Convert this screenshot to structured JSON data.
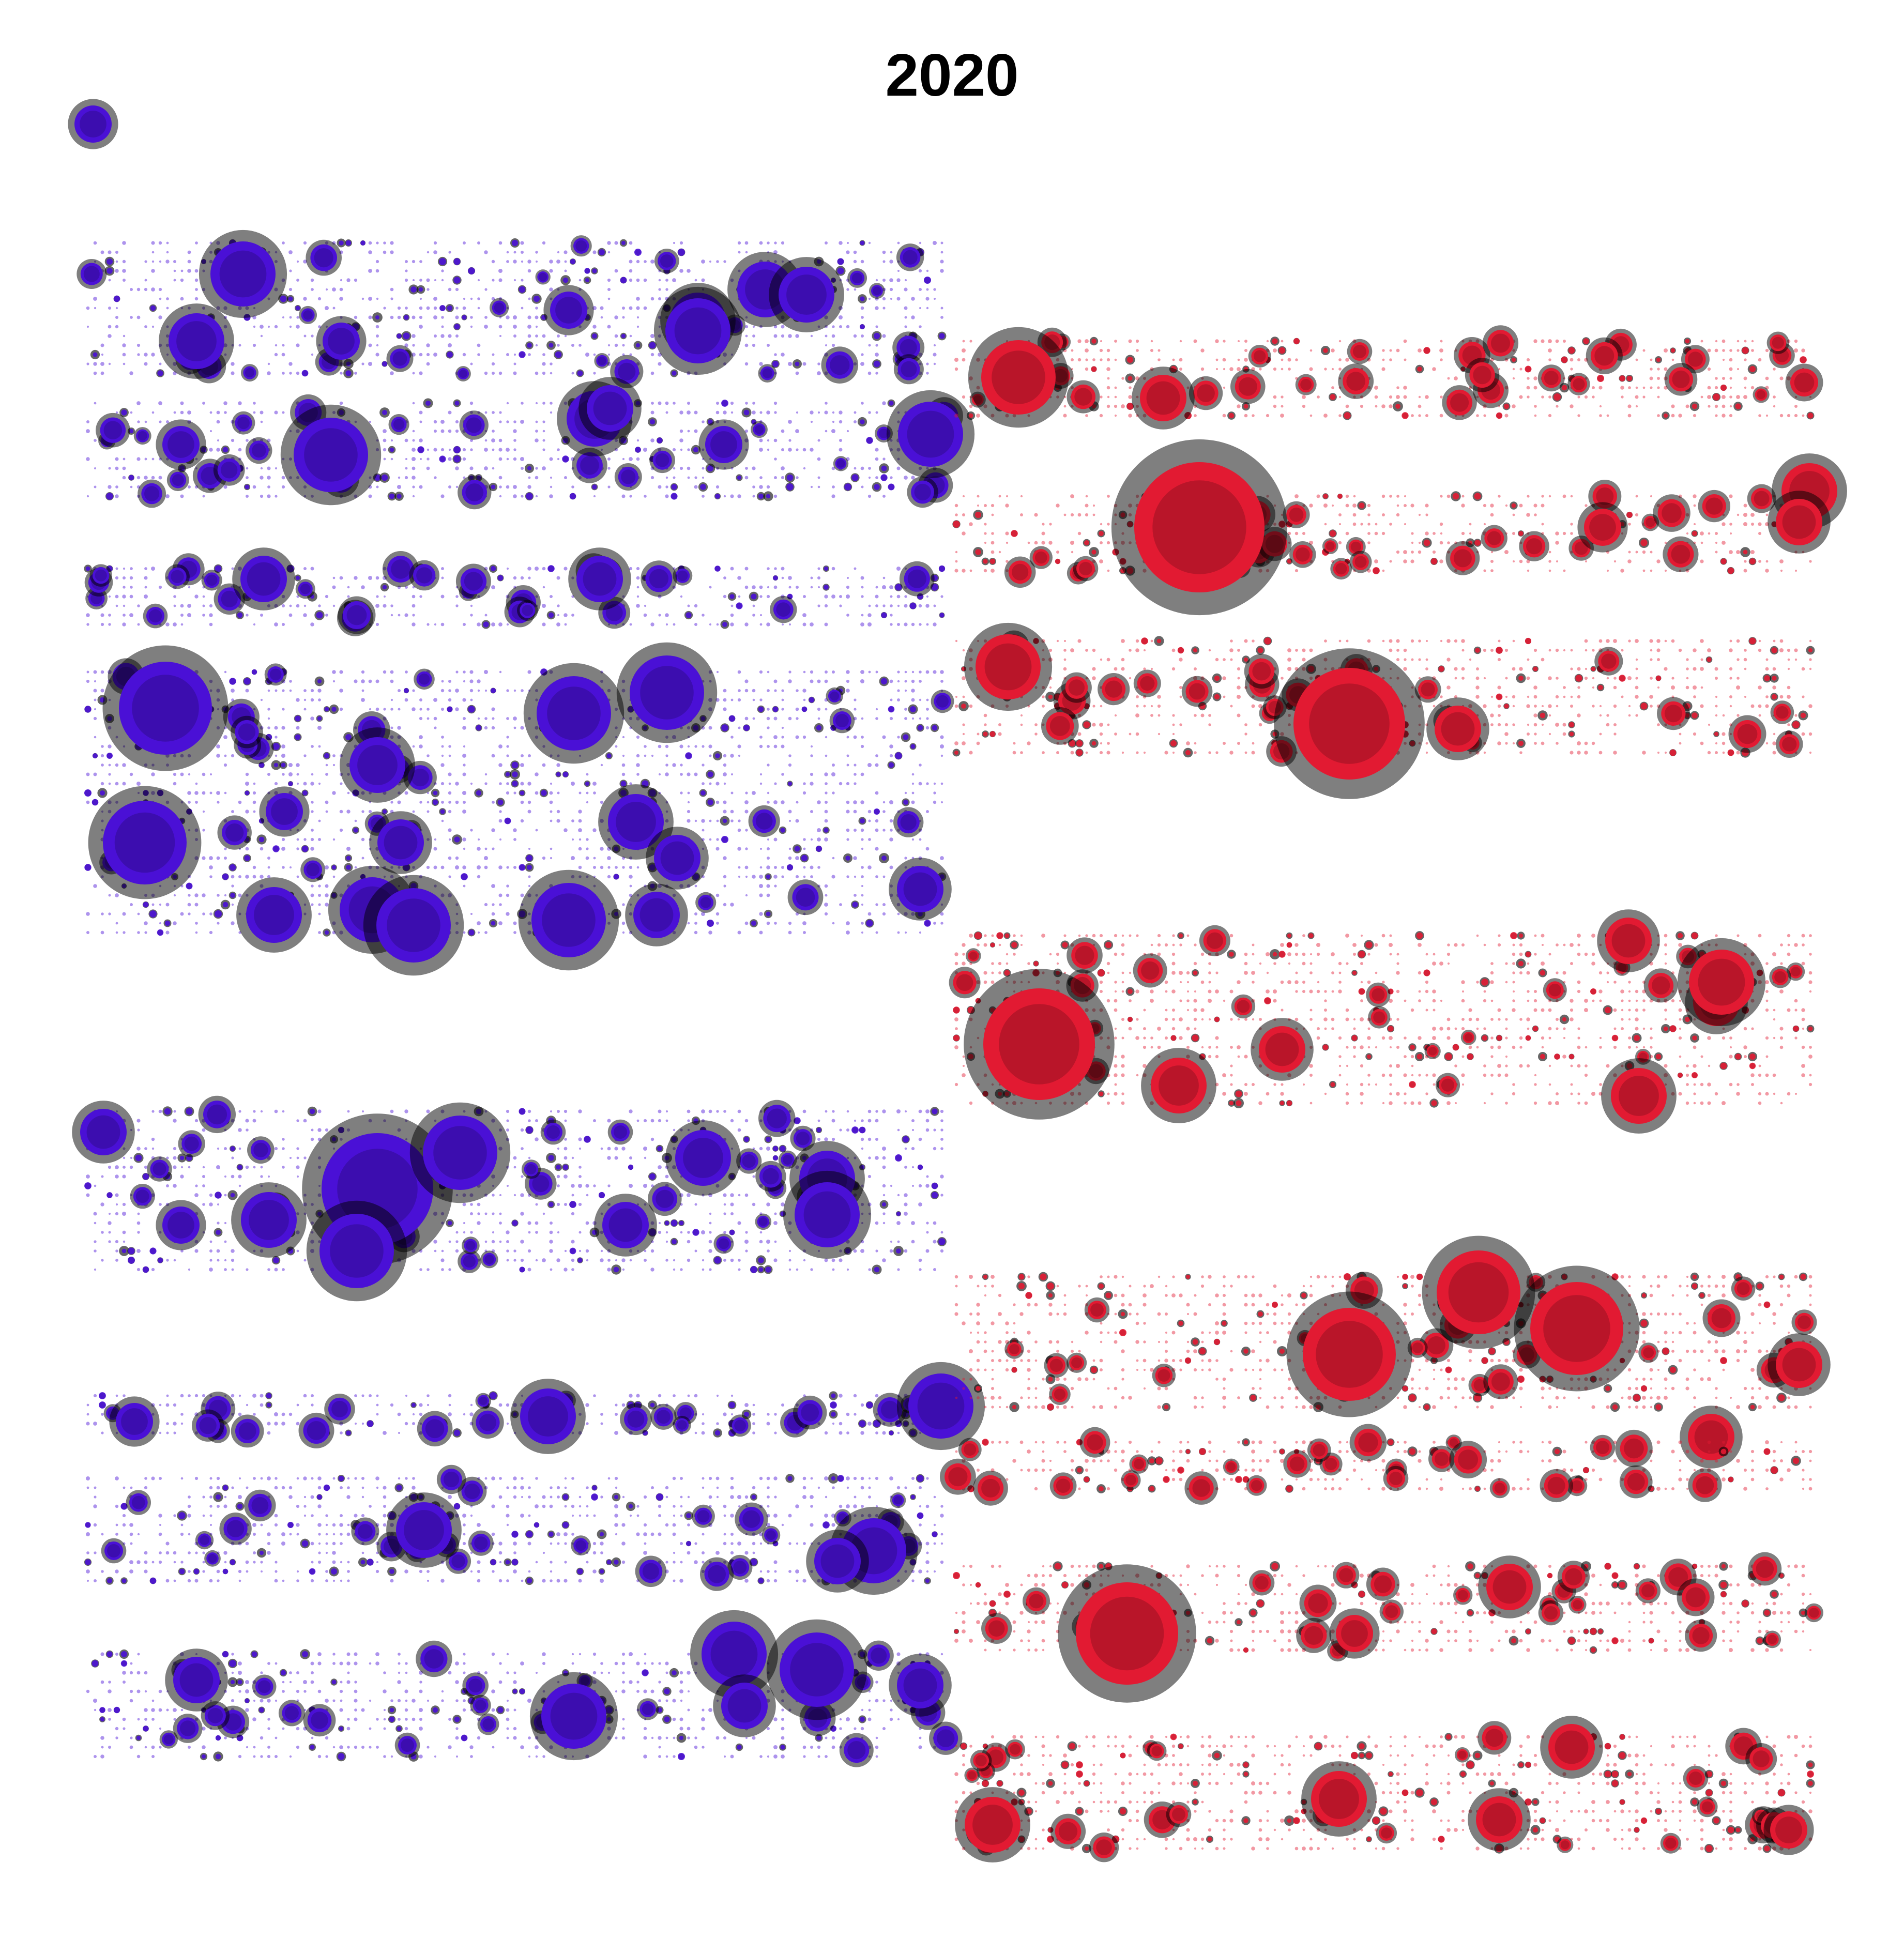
{
  "chart_data": {
    "type": "scatter",
    "title": "2020",
    "xlabel": "",
    "ylabel": "",
    "grid": false,
    "legend": "none",
    "colors": {
      "left": "#4a10d6",
      "right": "#e21a32",
      "halo": "#000000"
    },
    "bands": [
      {
        "side": "left",
        "y": [
          470,
          730
        ],
        "bubbles": [
          [
            180,
            240,
            2
          ],
          [
            470,
            530,
            3.5
          ],
          [
            660,
            660,
            2
          ],
          [
            1350,
            620,
            3
          ],
          [
            1480,
            560,
            3
          ],
          [
            1560,
            570,
            3
          ],
          [
            1350,
            640,
            3.5
          ],
          [
            380,
            660,
            3
          ],
          [
            1100,
            600,
            2
          ]
        ]
      },
      {
        "side": "left",
        "y": [
          780,
          960
        ],
        "bubbles": [
          [
            640,
            880,
            4
          ],
          [
            1150,
            810,
            3
          ],
          [
            1180,
            790,
            2.5
          ],
          [
            1800,
            840,
            3.5
          ],
          [
            350,
            860,
            2
          ],
          [
            1400,
            860,
            2
          ]
        ]
      },
      {
        "side": "left",
        "y": [
          1100,
          1210
        ],
        "bubbles": [
          [
            510,
            1120,
            2.5
          ],
          [
            1160,
            1120,
            2.5
          ],
          [
            690,
            1190,
            1.5
          ]
        ]
      },
      {
        "side": "left",
        "y": [
          1300,
          1800
        ],
        "bubbles": [
          [
            320,
            1370,
            5
          ],
          [
            1290,
            1340,
            4
          ],
          [
            1110,
            1380,
            4
          ],
          [
            730,
            1480,
            3
          ],
          [
            280,
            1630,
            4.5
          ],
          [
            1230,
            1590,
            3
          ],
          [
            550,
            1570,
            2
          ],
          [
            775,
            1630,
            2.5
          ],
          [
            1310,
            1660,
            2.5
          ],
          [
            530,
            1770,
            3
          ],
          [
            720,
            1760,
            3.5
          ],
          [
            800,
            1790,
            4
          ],
          [
            1100,
            1780,
            4
          ],
          [
            1270,
            1770,
            2.5
          ],
          [
            1780,
            1720,
            2.5
          ]
        ]
      },
      {
        "side": "left",
        "y": [
          2150,
          2460
        ],
        "bubbles": [
          [
            730,
            2300,
            6
          ],
          [
            690,
            2420,
            4
          ],
          [
            890,
            2230,
            4
          ],
          [
            520,
            2360,
            3
          ],
          [
            1600,
            2280,
            3
          ],
          [
            1600,
            2350,
            3.5
          ],
          [
            1360,
            2240,
            3
          ],
          [
            1210,
            2370,
            2.5
          ],
          [
            1070,
            2190,
            1
          ],
          [
            1200,
            2190,
            1
          ],
          [
            200,
            2190,
            2.5
          ],
          [
            350,
            2370,
            2
          ]
        ]
      },
      {
        "side": "left",
        "y": [
          2700,
          2770
        ],
        "bubbles": [
          [
            1060,
            2740,
            3
          ],
          [
            1820,
            2720,
            3.5
          ],
          [
            260,
            2750,
            2
          ]
        ]
      },
      {
        "side": "left",
        "y": [
          2860,
          3060
        ],
        "bubbles": [
          [
            820,
            2960,
            3
          ],
          [
            1690,
            3000,
            3.5
          ],
          [
            1620,
            3020,
            2.5
          ],
          [
            220,
            3000,
            1
          ]
        ]
      },
      {
        "side": "left",
        "y": [
          3200,
          3390
        ],
        "bubbles": [
          [
            1580,
            3230,
            4
          ],
          [
            1420,
            3200,
            3.5
          ],
          [
            1110,
            3320,
            3.5
          ],
          [
            380,
            3250,
            2.5
          ],
          [
            1780,
            3260,
            2.5
          ],
          [
            1440,
            3300,
            2.5
          ]
        ]
      },
      {
        "side": "right",
        "y": [
          660,
          800
        ],
        "bubbles": [
          [
            1970,
            730,
            4
          ],
          [
            2630,
            680,
            1
          ],
          [
            2250,
            770,
            2.5
          ],
          [
            3490,
            740,
            1.5
          ]
        ]
      },
      {
        "side": "right",
        "y": [
          960,
          1110
        ],
        "bubbles": [
          [
            2320,
            1020,
            7
          ],
          [
            3500,
            950,
            3
          ],
          [
            3480,
            1010,
            2.5
          ],
          [
            3100,
            1020,
            2
          ],
          [
            2100,
            1100,
            1
          ]
        ]
      },
      {
        "side": "right",
        "y": [
          1240,
          1460
        ],
        "bubbles": [
          [
            1950,
            1290,
            3.5
          ],
          [
            2610,
            1400,
            6
          ],
          [
            2820,
            1410,
            2.5
          ],
          [
            3380,
            1420,
            1.5
          ]
        ]
      },
      {
        "side": "right",
        "y": [
          1810,
          2130
        ],
        "bubbles": [
          [
            2010,
            2020,
            6
          ],
          [
            2280,
            2100,
            3
          ],
          [
            3320,
            1940,
            2.5
          ],
          [
            3330,
            1900,
            3.5
          ],
          [
            3150,
            1820,
            2.5
          ],
          [
            3170,
            2120,
            3
          ],
          [
            2480,
            2030,
            2.5
          ]
        ]
      },
      {
        "side": "right",
        "y": [
          2470,
          2720
        ],
        "bubbles": [
          [
            2610,
            2620,
            5
          ],
          [
            2860,
            2500,
            4.5
          ],
          [
            3050,
            2570,
            5
          ],
          [
            3480,
            2640,
            2.5
          ],
          [
            3330,
            2550,
            1.5
          ],
          [
            3310,
            2780,
            2.5
          ]
        ]
      },
      {
        "side": "right",
        "y": [
          2790,
          2880
        ],
        "bubbles": [
          [
            2700,
            2860,
            1
          ],
          [
            3100,
            2800,
            1
          ]
        ]
      },
      {
        "side": "right",
        "y": [
          3030,
          3200
        ],
        "bubbles": [
          [
            2180,
            3160,
            5.5
          ],
          [
            2920,
            3070,
            2.5
          ],
          [
            2620,
            3160,
            2
          ],
          [
            3280,
            3090,
            1.5
          ],
          [
            3000,
            3120,
            1
          ]
        ]
      },
      {
        "side": "right",
        "y": [
          3360,
          3580
        ],
        "bubbles": [
          [
            2280,
            3510,
            1
          ],
          [
            3280,
            3440,
            1
          ],
          [
            3040,
            3380,
            2.5
          ],
          [
            1920,
            3530,
            3
          ],
          [
            2590,
            3480,
            3
          ],
          [
            3460,
            3540,
            2
          ],
          [
            2900,
            3520,
            2.5
          ]
        ]
      }
    ]
  }
}
